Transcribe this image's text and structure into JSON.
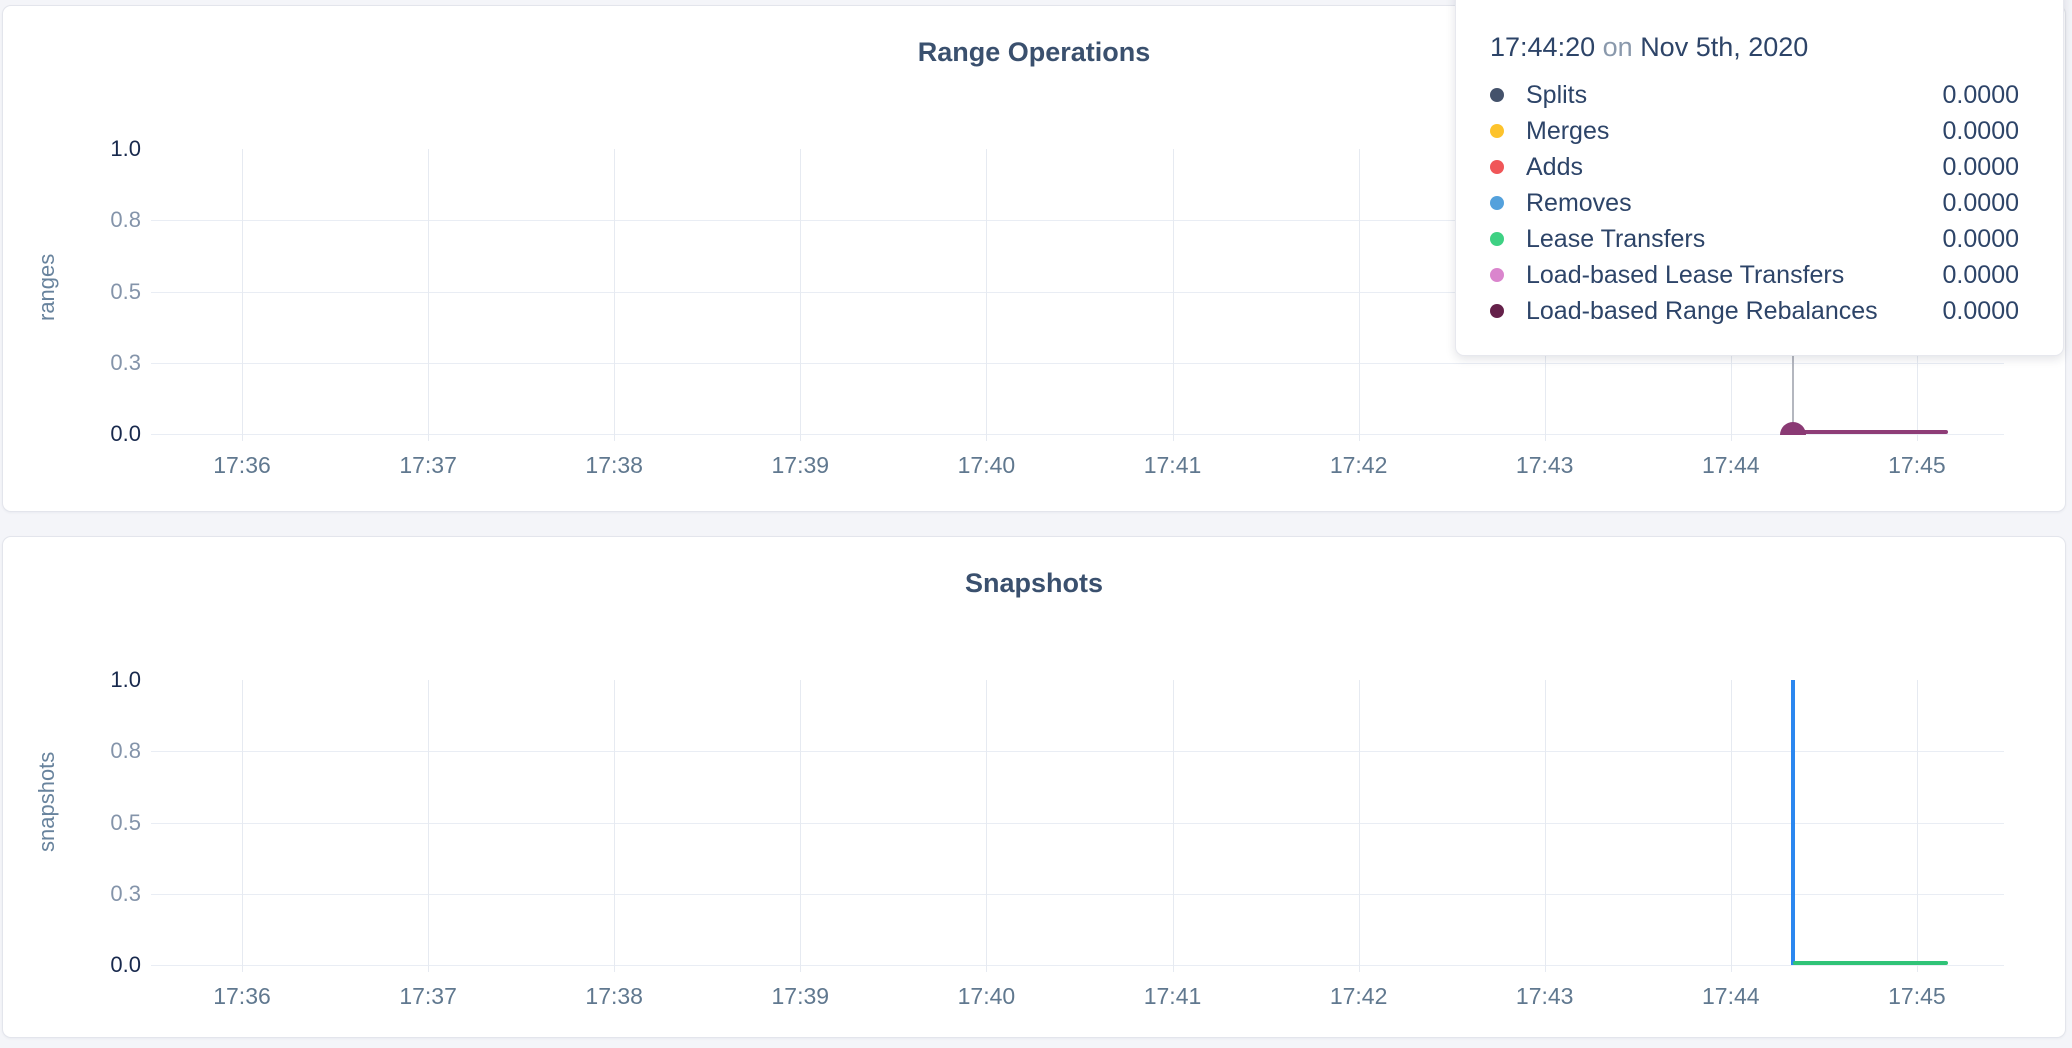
{
  "page": {
    "background": "#f4f5f9",
    "card_background": "#ffffff",
    "grid_color": "#e9edf4",
    "crosshair_color": "#b4b7bf"
  },
  "tooltip": {
    "time": "17:44:20",
    "connector": "on",
    "date": "Nov 5th, 2020",
    "rows": [
      {
        "label": "Splits",
        "value": "0.0000",
        "color": "#44526b"
      },
      {
        "label": "Merges",
        "value": "0.0000",
        "color": "#fdc32c"
      },
      {
        "label": "Adds",
        "value": "0.0000",
        "color": "#f05658"
      },
      {
        "label": "Removes",
        "value": "0.0000",
        "color": "#54a1dc"
      },
      {
        "label": "Lease Transfers",
        "value": "0.0000",
        "color": "#3ed183"
      },
      {
        "label": "Load-based Lease Transfers",
        "value": "0.0000",
        "color": "#da85cd"
      },
      {
        "label": "Load-based Range Rebalances",
        "value": "0.0000",
        "color": "#65214a"
      }
    ]
  },
  "chart_data": [
    {
      "type": "line",
      "title": "Range Operations",
      "xlabel": "",
      "ylabel": "ranges",
      "ylim": [
        0,
        1
      ],
      "grid": true,
      "y_ticks": [
        {
          "value": 1.0,
          "label": "1.0",
          "emphasized": true
        },
        {
          "value": 0.75,
          "label": "0.8",
          "emphasized": false
        },
        {
          "value": 0.5,
          "label": "0.5",
          "emphasized": false
        },
        {
          "value": 0.25,
          "label": "0.3",
          "emphasized": false
        },
        {
          "value": 0.0,
          "label": "0.0",
          "emphasized": true
        }
      ],
      "x_ticks": [
        "17:36",
        "17:37",
        "17:38",
        "17:39",
        "17:40",
        "17:41",
        "17:42",
        "17:43",
        "17:44",
        "17:45"
      ],
      "x_range": [
        "17:35:31",
        "17:45:28"
      ],
      "series": [
        {
          "name": "load-based-range-rebalances-line",
          "color": "#8e3d77",
          "points": [
            {
              "t": "17:44:17",
              "y": 0
            },
            {
              "t": "17:45:10",
              "y": 0
            }
          ]
        }
      ],
      "hover": {
        "t": "17:44:20",
        "y": 0,
        "dot_color": "#8a3a74"
      }
    },
    {
      "type": "line",
      "title": "Snapshots",
      "xlabel": "",
      "ylabel": "snapshots",
      "ylim": [
        0,
        1
      ],
      "grid": true,
      "y_ticks": [
        {
          "value": 1.0,
          "label": "1.0",
          "emphasized": true
        },
        {
          "value": 0.75,
          "label": "0.8",
          "emphasized": false
        },
        {
          "value": 0.5,
          "label": "0.5",
          "emphasized": false
        },
        {
          "value": 0.25,
          "label": "0.3",
          "emphasized": false
        },
        {
          "value": 0.0,
          "label": "0.0",
          "emphasized": true
        }
      ],
      "x_ticks": [
        "17:36",
        "17:37",
        "17:38",
        "17:39",
        "17:40",
        "17:41",
        "17:42",
        "17:43",
        "17:44",
        "17:45"
      ],
      "x_range": [
        "17:35:31",
        "17:45:28"
      ],
      "series": [
        {
          "name": "blue-spike-line",
          "color": "#2b87ef",
          "points": [
            {
              "t": "17:44:20",
              "y": 1
            },
            {
              "t": "17:44:20",
              "y": 0
            }
          ]
        },
        {
          "name": "green-flat-line",
          "color": "#30c377",
          "points": [
            {
              "t": "17:44:20",
              "y": 0
            },
            {
              "t": "17:45:10",
              "y": 0
            }
          ]
        }
      ],
      "hover": null
    }
  ]
}
